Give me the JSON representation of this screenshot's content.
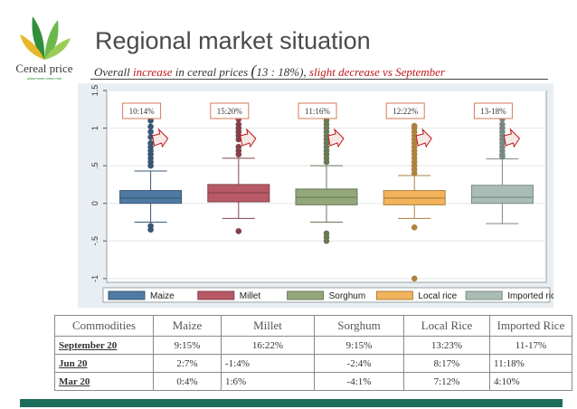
{
  "header": {
    "title": "Regional market situation",
    "subtitle_parts": [
      "Overall ",
      "increase",
      " in cereal prices ",
      "(",
      "13 : 18%), ",
      "slight decrease vs September"
    ],
    "logo_text": "Cereal price",
    "logo_url": "www.mmm.mmm.mm"
  },
  "colors": {
    "maize": "#4e7aa3",
    "millet": "#b85a66",
    "sorghum": "#93a87a",
    "local_rice": "#f2b35a",
    "imported_rice": "#a9bdb6",
    "accent_red": "#c0161b",
    "footer_bar": "#1e6e5e"
  },
  "chart_data": {
    "type": "box",
    "ylim": [
      -1.05,
      1.5
    ],
    "yticks": [
      -1,
      -0.5,
      0,
      0.5,
      1,
      1.5
    ],
    "ytick_labels": [
      "-1",
      "-.5",
      "0",
      ".5",
      "1",
      "1.5"
    ],
    "grid": true,
    "legend_position": "bottom",
    "series": [
      {
        "name": "Maize",
        "color_key": "maize",
        "whisker_low": -0.25,
        "q1": 0.0,
        "median": 0.07,
        "q3": 0.17,
        "whisker_high": 0.43,
        "outliers_high": [
          0.5,
          0.55,
          0.6,
          0.65,
          0.7,
          0.75,
          0.8,
          0.88,
          0.95,
          1.02,
          1.1,
          1.15
        ],
        "outliers_low": [
          -0.3,
          -0.35
        ],
        "annotation": "10:14%"
      },
      {
        "name": "Millet",
        "color_key": "millet",
        "whisker_low": -0.2,
        "q1": 0.02,
        "median": 0.14,
        "q3": 0.25,
        "whisker_high": 0.6,
        "outliers_high": [
          0.65,
          0.7,
          0.75,
          0.85,
          0.9,
          0.95,
          1.0,
          1.05,
          1.12,
          1.2,
          1.22
        ],
        "outliers_low": [
          -0.37
        ],
        "annotation": "15:20%"
      },
      {
        "name": "Sorghum",
        "color_key": "sorghum",
        "whisker_low": -0.25,
        "q1": -0.02,
        "median": 0.08,
        "q3": 0.19,
        "whisker_high": 0.5,
        "outliers_high": [
          0.55,
          0.6,
          0.65,
          0.7,
          0.75,
          0.8,
          0.85,
          0.9,
          0.95,
          1.0,
          1.05,
          1.1,
          1.15
        ],
        "outliers_low": [
          -0.4,
          -0.45,
          -0.5
        ],
        "annotation": "11:16%"
      },
      {
        "name": "Local rice",
        "color_key": "local_rice",
        "whisker_low": -0.2,
        "q1": -0.02,
        "median": 0.07,
        "q3": 0.17,
        "whisker_high": 0.37,
        "outliers_high": [
          0.4,
          0.45,
          0.5,
          0.55,
          0.6,
          0.65,
          0.7,
          0.75,
          0.8,
          0.85,
          0.9,
          0.95,
          1.0,
          1.03
        ],
        "outliers_low": [
          -0.32,
          -1.0
        ],
        "annotation": "12:22%"
      },
      {
        "name": "Imported rice",
        "color_key": "imported_rice",
        "whisker_low": -0.27,
        "q1": 0.0,
        "median": 0.08,
        "q3": 0.24,
        "whisker_high": 0.59,
        "outliers_high": [
          0.62,
          0.65,
          0.7,
          0.75,
          0.8,
          0.85,
          0.9,
          0.95,
          1.0,
          1.05,
          1.12
        ],
        "outliers_low": [],
        "annotation": "13-18%"
      }
    ],
    "legend": [
      "Maize",
      "Millet",
      "Sorghum",
      "Local rice",
      "Imported rice"
    ]
  },
  "table": {
    "headers": [
      "Commodities",
      "Maize",
      "Millet",
      "Sorghum",
      "Local Rice",
      "Imported Rice"
    ],
    "rows": [
      {
        "label": "September 20",
        "cells": [
          "9:15%",
          "16:22%",
          "9:15%",
          "13:23%",
          "11-17%"
        ]
      },
      {
        "label": "Jun 20",
        "cells": [
          "2:7%",
          "-1:4%",
          "-2:4%",
          "8:17%",
          "11:18%"
        ]
      },
      {
        "label": "Mar 20",
        "cells": [
          "0:4%",
          "1:6%",
          "-4:1%",
          "7:12%",
          "4:10%"
        ]
      }
    ]
  }
}
